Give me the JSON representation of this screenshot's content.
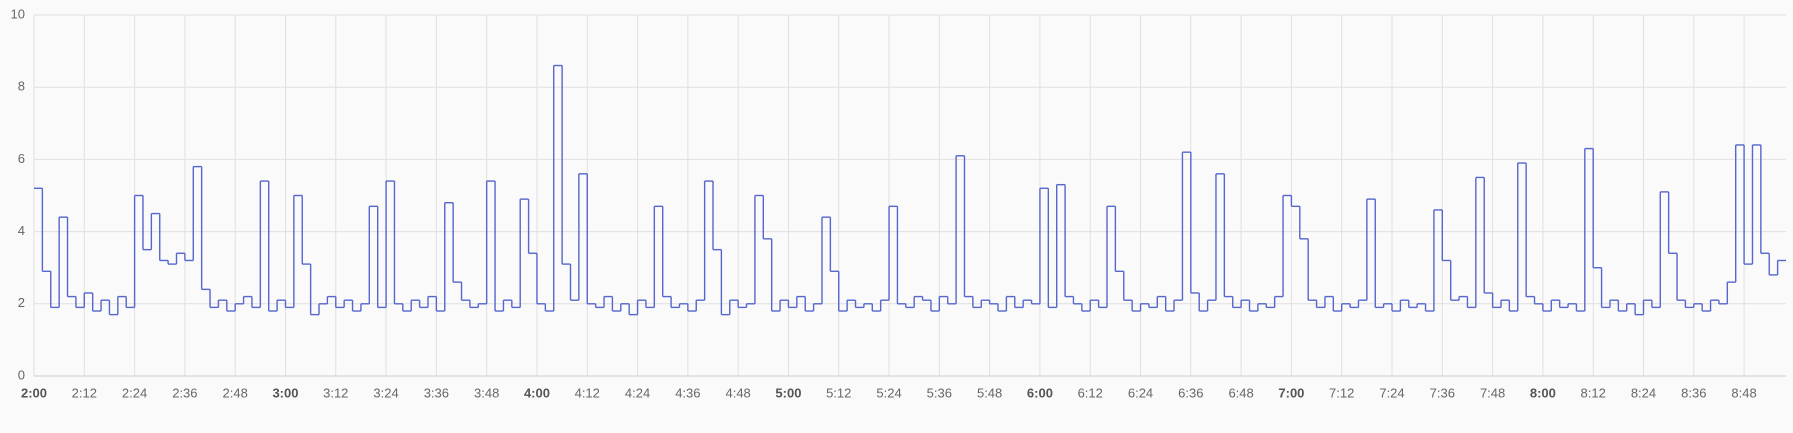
{
  "chart_data": {
    "type": "step-line",
    "x": [
      "2:00",
      "2:02",
      "2:04",
      "2:06",
      "2:08",
      "2:10",
      "2:12",
      "2:14",
      "2:16",
      "2:18",
      "2:20",
      "2:22",
      "2:24",
      "2:26",
      "2:28",
      "2:30",
      "2:32",
      "2:34",
      "2:36",
      "2:38",
      "2:40",
      "2:42",
      "2:44",
      "2:46",
      "2:48",
      "2:50",
      "2:52",
      "2:54",
      "2:56",
      "2:58",
      "3:00",
      "3:02",
      "3:04",
      "3:06",
      "3:08",
      "3:10",
      "3:12",
      "3:14",
      "3:16",
      "3:18",
      "3:20",
      "3:22",
      "3:24",
      "3:26",
      "3:28",
      "3:30",
      "3:32",
      "3:34",
      "3:36",
      "3:38",
      "3:40",
      "3:42",
      "3:44",
      "3:46",
      "3:48",
      "3:50",
      "3:52",
      "3:54",
      "3:56",
      "3:58",
      "4:00",
      "4:02",
      "4:04",
      "4:06",
      "4:08",
      "4:10",
      "4:12",
      "4:14",
      "4:16",
      "4:18",
      "4:20",
      "4:22",
      "4:24",
      "4:26",
      "4:28",
      "4:30",
      "4:32",
      "4:34",
      "4:36",
      "4:38",
      "4:40",
      "4:42",
      "4:44",
      "4:46",
      "4:48",
      "4:50",
      "4:52",
      "4:54",
      "4:56",
      "4:58",
      "5:00",
      "5:02",
      "5:04",
      "5:06",
      "5:08",
      "5:10",
      "5:12",
      "5:14",
      "5:16",
      "5:18",
      "5:20",
      "5:22",
      "5:24",
      "5:26",
      "5:28",
      "5:30",
      "5:32",
      "5:34",
      "5:36",
      "5:38",
      "5:40",
      "5:42",
      "5:44",
      "5:46",
      "5:48",
      "5:50",
      "5:52",
      "5:54",
      "5:56",
      "5:58",
      "6:00",
      "6:02",
      "6:04",
      "6:06",
      "6:08",
      "6:10",
      "6:12",
      "6:14",
      "6:16",
      "6:18",
      "6:20",
      "6:22",
      "6:24",
      "6:26",
      "6:28",
      "6:30",
      "6:32",
      "6:34",
      "6:36",
      "6:38",
      "6:40",
      "6:42",
      "6:44",
      "6:46",
      "6:48",
      "6:50",
      "6:52",
      "6:54",
      "6:56",
      "6:58",
      "7:00",
      "7:02",
      "7:04",
      "7:06",
      "7:08",
      "7:10",
      "7:12",
      "7:14",
      "7:16",
      "7:18",
      "7:20",
      "7:22",
      "7:24",
      "7:26",
      "7:28",
      "7:30",
      "7:32",
      "7:34",
      "7:36",
      "7:38",
      "7:40",
      "7:42",
      "7:44",
      "7:46",
      "7:48",
      "7:50",
      "7:52",
      "7:54",
      "7:56",
      "7:58",
      "8:00",
      "8:02",
      "8:04",
      "8:06",
      "8:08",
      "8:10",
      "8:12",
      "8:14",
      "8:16",
      "8:18",
      "8:20",
      "8:22",
      "8:24",
      "8:26",
      "8:28",
      "8:30",
      "8:32",
      "8:34",
      "8:36",
      "8:38",
      "8:40",
      "8:42",
      "8:44",
      "8:46",
      "8:48",
      "8:50",
      "8:52",
      "8:54",
      "8:56"
    ],
    "series": [
      {
        "color": "#5566cc",
        "values": [
          5.2,
          2.9,
          1.9,
          4.4,
          2.2,
          1.9,
          2.3,
          1.8,
          2.1,
          1.7,
          2.2,
          1.9,
          5.0,
          3.5,
          4.5,
          3.2,
          3.1,
          3.4,
          3.2,
          5.8,
          2.4,
          1.9,
          2.1,
          1.8,
          2.0,
          2.2,
          1.9,
          5.4,
          1.8,
          2.1,
          1.9,
          5.0,
          3.1,
          1.7,
          2.0,
          2.2,
          1.9,
          2.1,
          1.8,
          2.0,
          4.7,
          1.9,
          5.4,
          2.0,
          1.8,
          2.1,
          1.9,
          2.2,
          1.8,
          4.8,
          2.6,
          2.1,
          1.9,
          2.0,
          5.4,
          1.8,
          2.1,
          1.9,
          4.9,
          3.4,
          2.0,
          1.8,
          8.6,
          3.1,
          2.1,
          5.6,
          2.0,
          1.9,
          2.2,
          1.8,
          2.0,
          1.7,
          2.1,
          1.9,
          4.7,
          2.2,
          1.9,
          2.0,
          1.8,
          2.1,
          5.4,
          3.5,
          1.7,
          2.1,
          1.9,
          2.0,
          5.0,
          3.8,
          1.8,
          2.1,
          1.9,
          2.2,
          1.8,
          2.0,
          4.4,
          2.9,
          1.8,
          2.1,
          1.9,
          2.0,
          1.8,
          2.1,
          4.7,
          2.0,
          1.9,
          2.2,
          2.1,
          1.8,
          2.2,
          2.0,
          6.1,
          2.2,
          1.9,
          2.1,
          2.0,
          1.8,
          2.2,
          1.9,
          2.1,
          2.0,
          5.2,
          1.9,
          5.3,
          2.2,
          2.0,
          1.8,
          2.1,
          1.9,
          4.7,
          2.9,
          2.1,
          1.8,
          2.0,
          1.9,
          2.2,
          1.8,
          2.1,
          6.2,
          2.3,
          1.8,
          2.1,
          5.6,
          2.2,
          1.9,
          2.1,
          1.8,
          2.0,
          1.9,
          2.2,
          5.0,
          4.7,
          3.8,
          2.1,
          1.9,
          2.2,
          1.8,
          2.0,
          1.9,
          2.1,
          4.9,
          1.9,
          2.0,
          1.8,
          2.1,
          1.9,
          2.0,
          1.8,
          4.6,
          3.2,
          2.1,
          2.2,
          1.9,
          5.5,
          2.3,
          1.9,
          2.1,
          1.8,
          5.9,
          2.2,
          2.0,
          1.8,
          2.1,
          1.9,
          2.0,
          1.8,
          6.3,
          3.0,
          1.9,
          2.1,
          1.8,
          2.0,
          1.7,
          2.1,
          1.9,
          5.1,
          3.4,
          2.1,
          1.9,
          2.0,
          1.8,
          2.1,
          2.0,
          2.6,
          6.4,
          3.1,
          6.4,
          3.4,
          2.8,
          3.2
        ]
      }
    ],
    "xlim": [
      "2:00",
      "8:58"
    ],
    "xticks": [
      "2:00",
      "2:12",
      "2:24",
      "2:36",
      "2:48",
      "3:00",
      "3:12",
      "3:24",
      "3:36",
      "3:48",
      "4:00",
      "4:12",
      "4:24",
      "4:36",
      "4:48",
      "5:00",
      "5:12",
      "5:24",
      "5:36",
      "5:48",
      "6:00",
      "6:12",
      "6:24",
      "6:36",
      "6:48",
      "7:00",
      "7:12",
      "7:24",
      "7:36",
      "7:48",
      "8:00",
      "8:12",
      "8:24",
      "8:36",
      "8:48"
    ],
    "ylim": [
      0,
      10
    ],
    "yticks": [
      0,
      2,
      4,
      6,
      8,
      10
    ],
    "grid": true
  }
}
